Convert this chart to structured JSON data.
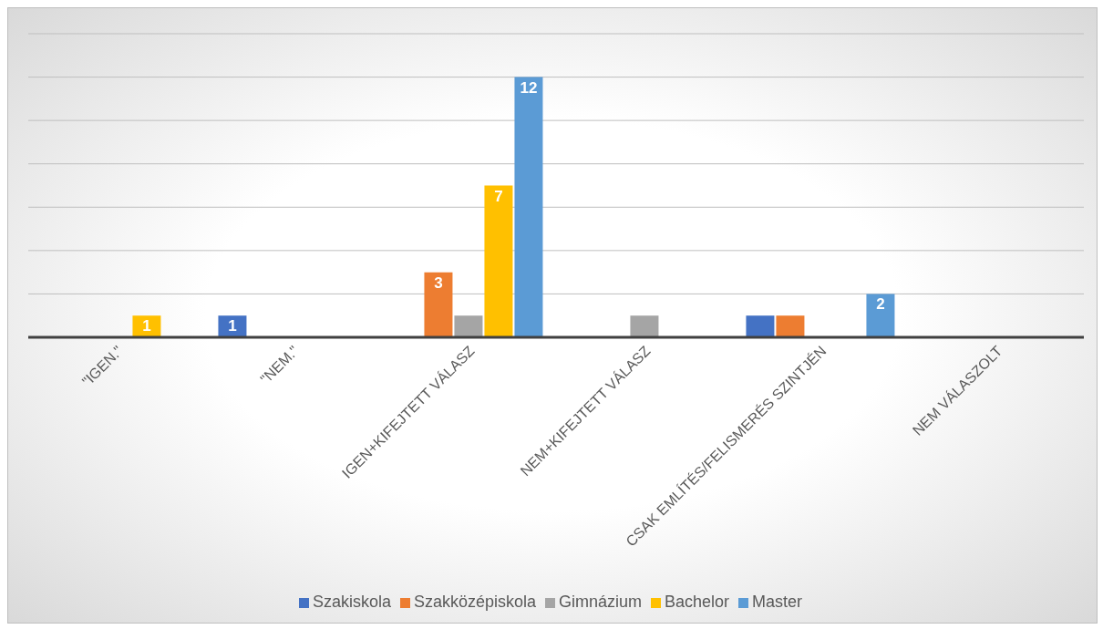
{
  "chart_data": {
    "type": "bar",
    "categories": [
      "\"IGEN.\"",
      "\"NEM.\"",
      "IGEN+KIFEJTETT VÁLASZ",
      "NEM+KIFEJTETT VÁLASZ",
      "CSAK EMLÍTÉS/FELISMERÉS SZINTJÉN",
      "NEM VÁLASZOLT"
    ],
    "series": [
      {
        "name": "Szakiskola",
        "color": "#4472c4",
        "values": [
          null,
          1,
          null,
          null,
          1,
          null
        ],
        "value_labels": [
          null,
          "1",
          null,
          null,
          null,
          null
        ]
      },
      {
        "name": "Szakközépiskola",
        "color": "#ed7d31",
        "values": [
          null,
          null,
          3,
          null,
          1,
          null
        ],
        "value_labels": [
          null,
          null,
          "3",
          null,
          null,
          null
        ]
      },
      {
        "name": "Gimnázium",
        "color": "#a5a5a5",
        "values": [
          null,
          null,
          1,
          1,
          null,
          null
        ],
        "value_labels": [
          null,
          null,
          null,
          null,
          null,
          null
        ]
      },
      {
        "name": "Bachelor",
        "color": "#ffc000",
        "values": [
          1,
          null,
          7,
          null,
          null,
          null
        ],
        "value_labels": [
          "1",
          null,
          "7",
          null,
          null,
          null
        ]
      },
      {
        "name": "Master",
        "color": "#5b9bd5",
        "values": [
          null,
          null,
          12,
          null,
          2,
          null
        ],
        "value_labels": [
          null,
          null,
          "12",
          null,
          "2",
          null
        ]
      }
    ],
    "ylim": [
      0,
      14
    ],
    "yticks": [
      {
        "value": 0,
        "label": null
      },
      {
        "value": 2,
        "label": null
      },
      {
        "value": 4,
        "label": null
      },
      {
        "value": 6,
        "label": null
      },
      {
        "value": 8,
        "label": null
      },
      {
        "value": 10,
        "label": null
      },
      {
        "value": 12,
        "label": null
      },
      {
        "value": 14,
        "label": null
      }
    ],
    "tick_labels": "x",
    "grid": "y",
    "legend": "bottom"
  }
}
